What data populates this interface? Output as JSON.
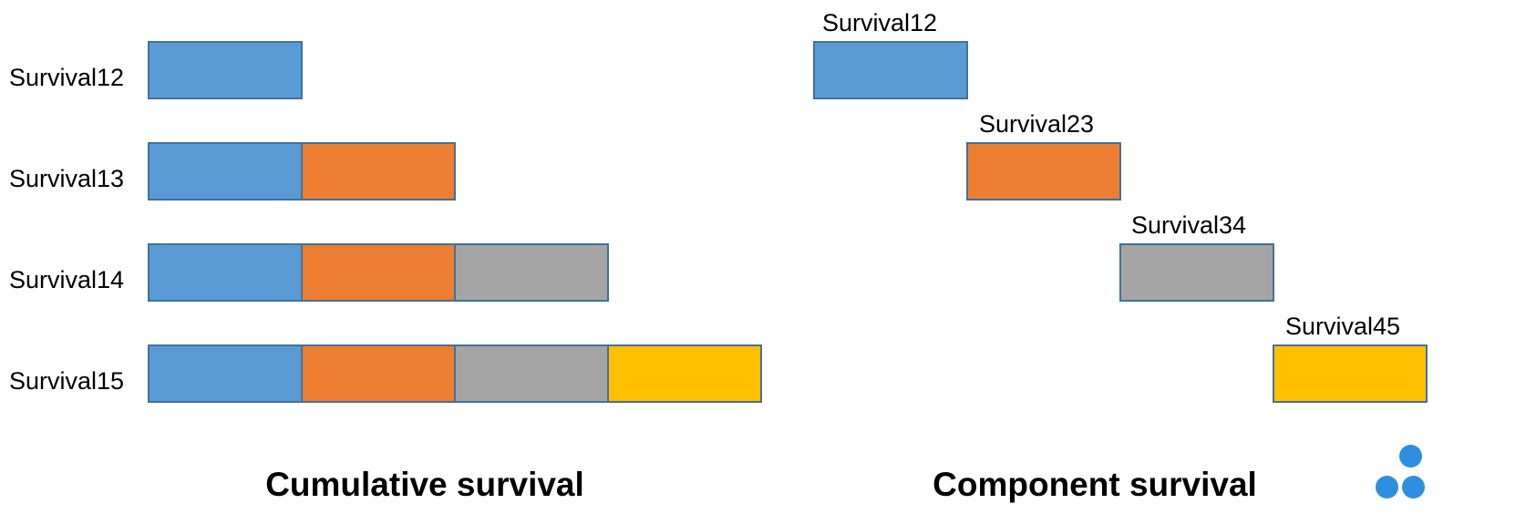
{
  "colors": {
    "segment_1": "#5b9bd5",
    "segment_2": "#ed7d31",
    "segment_3": "#a5a5a5",
    "segment_4": "#ffc000",
    "border": "#41719c",
    "logo": "#2e8fe0"
  },
  "cumulative": {
    "title": "Cumulative survival",
    "rows": [
      {
        "label": "Survival12",
        "segments": 1
      },
      {
        "label": "Survival13",
        "segments": 2
      },
      {
        "label": "Survival14",
        "segments": 3
      },
      {
        "label": "Survival15",
        "segments": 4
      }
    ]
  },
  "component": {
    "title": "Component survival",
    "bars": [
      {
        "label": "Survival12",
        "step": 1
      },
      {
        "label": "Survival23",
        "step": 2
      },
      {
        "label": "Survival34",
        "step": 3
      },
      {
        "label": "Survival45",
        "step": 4
      }
    ]
  }
}
